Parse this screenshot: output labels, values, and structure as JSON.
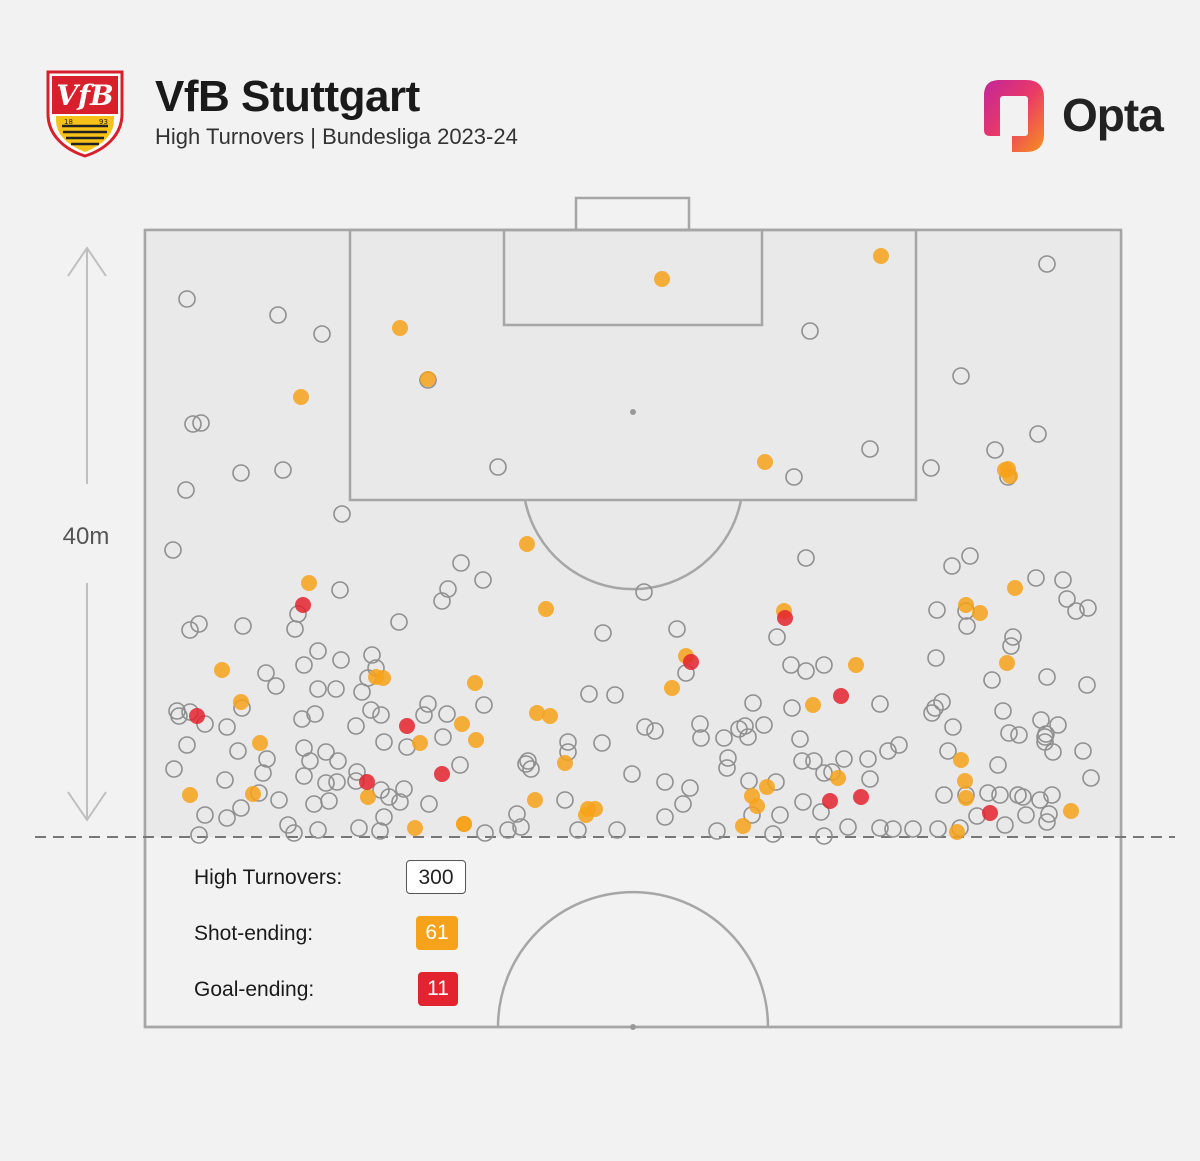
{
  "header": {
    "title": "VfB Stuttgart",
    "subtitle": "High Turnovers | Bundesliga 2023-24",
    "brand": "Opta",
    "crest_text": "VfB",
    "crest_year_left": "18",
    "crest_year_right": "93"
  },
  "distance_label": "40m",
  "stats": {
    "high_turnovers_label": "High Turnovers:",
    "high_turnovers_value": "300",
    "shot_ending_label": "Shot-ending:",
    "shot_ending_value": "61",
    "goal_ending_label": "Goal-ending:",
    "goal_ending_value": "11"
  },
  "colors": {
    "turnover": "#ffffff",
    "shot_ending": "#f7a21b",
    "goal_ending": "#e3232e",
    "pitch_lines": "#a6a6a6",
    "crest_red": "#d7202b",
    "crest_gold": "#f6c21a"
  },
  "chart_data": {
    "type": "scatter",
    "title": "VfB Stuttgart",
    "subtitle": "High Turnovers | Bundesliga 2023-24",
    "pitch_region": "attacking half, within 40m of opponent goal",
    "series": [
      {
        "name": "High Turnovers",
        "color": "#ffffff",
        "points": [
          [
            187,
            299
          ],
          [
            278,
            315
          ],
          [
            322,
            334
          ],
          [
            193,
            424
          ],
          [
            201,
            423
          ],
          [
            186,
            490
          ],
          [
            241,
            473
          ],
          [
            283,
            470
          ],
          [
            342,
            514
          ],
          [
            173,
            550
          ],
          [
            190,
            630
          ],
          [
            199,
            624
          ],
          [
            243,
            626
          ],
          [
            295,
            629
          ],
          [
            298,
            614
          ],
          [
            340,
            590
          ],
          [
            318,
            651
          ],
          [
            304,
            665
          ],
          [
            276,
            686
          ],
          [
            266,
            673
          ],
          [
            177,
            711
          ],
          [
            179,
            716
          ],
          [
            205,
            724
          ],
          [
            227,
            727
          ],
          [
            242,
            708
          ],
          [
            238,
            751
          ],
          [
            187,
            745
          ],
          [
            174,
            769
          ],
          [
            225,
            780
          ],
          [
            263,
            773
          ],
          [
            267,
            759
          ],
          [
            302,
            719
          ],
          [
            315,
            714
          ],
          [
            304,
            748
          ],
          [
            326,
            752
          ],
          [
            338,
            761
          ],
          [
            310,
            761
          ],
          [
            304,
            776
          ],
          [
            326,
            783
          ],
          [
            337,
            782
          ],
          [
            314,
            804
          ],
          [
            329,
            801
          ],
          [
            279,
            800
          ],
          [
            259,
            793
          ],
          [
            241,
            808
          ],
          [
            205,
            815
          ],
          [
            227,
            818
          ],
          [
            199,
            835
          ],
          [
            288,
            825
          ],
          [
            294,
            833
          ],
          [
            318,
            830
          ],
          [
            368,
            678
          ],
          [
            372,
            655
          ],
          [
            376,
            668
          ],
          [
            341,
            660
          ],
          [
            318,
            689
          ],
          [
            336,
            689
          ],
          [
            362,
            692
          ],
          [
            371,
            710
          ],
          [
            381,
            715
          ],
          [
            356,
            726
          ],
          [
            384,
            742
          ],
          [
            357,
            772
          ],
          [
            356,
            781
          ],
          [
            381,
            790
          ],
          [
            389,
            797
          ],
          [
            400,
            802
          ],
          [
            404,
            789
          ],
          [
            384,
            817
          ],
          [
            359,
            828
          ],
          [
            380,
            831
          ],
          [
            407,
            747
          ],
          [
            428,
            704
          ],
          [
            424,
            715
          ],
          [
            447,
            714
          ],
          [
            443,
            737
          ],
          [
            484,
            705
          ],
          [
            460,
            765
          ],
          [
            429,
            804
          ],
          [
            399,
            622
          ],
          [
            442,
            601
          ],
          [
            448,
            589
          ],
          [
            461,
            563
          ],
          [
            483,
            580
          ],
          [
            498,
            467
          ],
          [
            428,
            380
          ],
          [
            190,
            712
          ],
          [
            810,
            331
          ],
          [
            961,
            376
          ],
          [
            870,
            449
          ],
          [
            931,
            468
          ],
          [
            995,
            450
          ],
          [
            1038,
            434
          ],
          [
            1047,
            264
          ],
          [
            806,
            558
          ],
          [
            794,
            477
          ],
          [
            644,
            592
          ],
          [
            603,
            633
          ],
          [
            677,
            629
          ],
          [
            686,
            673
          ],
          [
            589,
            694
          ],
          [
            615,
            695
          ],
          [
            645,
            727
          ],
          [
            655,
            731
          ],
          [
            602,
            743
          ],
          [
            568,
            742
          ],
          [
            568,
            752
          ],
          [
            528,
            761
          ],
          [
            526,
            764
          ],
          [
            531,
            769
          ],
          [
            565,
            800
          ],
          [
            517,
            814
          ],
          [
            521,
            827
          ],
          [
            508,
            830
          ],
          [
            485,
            833
          ],
          [
            578,
            830
          ],
          [
            617,
            830
          ],
          [
            632,
            774
          ],
          [
            665,
            782
          ],
          [
            690,
            788
          ],
          [
            683,
            804
          ],
          [
            665,
            817
          ],
          [
            717,
            831
          ],
          [
            753,
            703
          ],
          [
            745,
            726
          ],
          [
            739,
            729
          ],
          [
            764,
            725
          ],
          [
            748,
            737
          ],
          [
            724,
            738
          ],
          [
            700,
            724
          ],
          [
            701,
            738
          ],
          [
            728,
            758
          ],
          [
            727,
            768
          ],
          [
            749,
            781
          ],
          [
            776,
            782
          ],
          [
            752,
            815
          ],
          [
            780,
            815
          ],
          [
            773,
            834
          ],
          [
            777,
            637
          ],
          [
            791,
            665
          ],
          [
            806,
            671
          ],
          [
            824,
            665
          ],
          [
            792,
            708
          ],
          [
            800,
            739
          ],
          [
            802,
            761
          ],
          [
            814,
            761
          ],
          [
            824,
            773
          ],
          [
            832,
            772
          ],
          [
            844,
            759
          ],
          [
            868,
            759
          ],
          [
            870,
            779
          ],
          [
            880,
            704
          ],
          [
            888,
            751
          ],
          [
            899,
            745
          ],
          [
            803,
            802
          ],
          [
            821,
            812
          ],
          [
            824,
            836
          ],
          [
            848,
            827
          ],
          [
            880,
            828
          ],
          [
            893,
            829
          ],
          [
            913,
            829
          ],
          [
            938,
            829
          ],
          [
            935,
            708
          ],
          [
            932,
            713
          ],
          [
            936,
            658
          ],
          [
            992,
            680
          ],
          [
            1003,
            711
          ],
          [
            1009,
            733
          ],
          [
            998,
            765
          ],
          [
            1019,
            735
          ],
          [
            1045,
            737
          ],
          [
            1046,
            734
          ],
          [
            1045,
            742
          ],
          [
            1041,
            720
          ],
          [
            1058,
            725
          ],
          [
            1053,
            752
          ],
          [
            1083,
            751
          ],
          [
            1091,
            778
          ],
          [
            1047,
            677
          ],
          [
            1087,
            685
          ],
          [
            1063,
            580
          ],
          [
            1067,
            599
          ],
          [
            1076,
            611
          ],
          [
            1088,
            608
          ],
          [
            1036,
            578
          ],
          [
            1011,
            646
          ],
          [
            1013,
            637
          ],
          [
            967,
            626
          ],
          [
            966,
            611
          ],
          [
            937,
            610
          ],
          [
            952,
            566
          ],
          [
            970,
            556
          ],
          [
            942,
            702
          ],
          [
            953,
            727
          ],
          [
            948,
            751
          ],
          [
            944,
            795
          ],
          [
            966,
            795
          ],
          [
            1000,
            795
          ],
          [
            988,
            793
          ],
          [
            1018,
            795
          ],
          [
            1023,
            797
          ],
          [
            1026,
            815
          ],
          [
            1040,
            800
          ],
          [
            1052,
            795
          ],
          [
            1049,
            814
          ],
          [
            1047,
            822
          ],
          [
            1005,
            825
          ],
          [
            977,
            816
          ],
          [
            960,
            828
          ],
          [
            1008,
            477
          ]
        ]
      },
      {
        "name": "Shot-ending",
        "color": "#f7a21b",
        "points": [
          [
            662,
            279
          ],
          [
            881,
            256
          ],
          [
            400,
            328
          ],
          [
            428,
            379
          ],
          [
            301,
            397
          ],
          [
            765,
            462
          ],
          [
            1008,
            469
          ],
          [
            1010,
            476
          ],
          [
            527,
            544
          ],
          [
            546,
            609
          ],
          [
            309,
            583
          ],
          [
            1015,
            588
          ],
          [
            966,
            605
          ],
          [
            980,
            613
          ],
          [
            784,
            611
          ],
          [
            1007,
            663
          ],
          [
            856,
            665
          ],
          [
            686,
            656
          ],
          [
            672,
            688
          ],
          [
            222,
            670
          ],
          [
            241,
            702
          ],
          [
            376,
            677
          ],
          [
            383,
            678
          ],
          [
            475,
            683
          ],
          [
            462,
            724
          ],
          [
            476,
            740
          ],
          [
            537,
            713
          ],
          [
            550,
            716
          ],
          [
            420,
            743
          ],
          [
            260,
            743
          ],
          [
            565,
            763
          ],
          [
            813,
            705
          ],
          [
            961,
            760
          ],
          [
            965,
            781
          ],
          [
            838,
            778
          ],
          [
            767,
            787
          ],
          [
            752,
            796
          ],
          [
            757,
            806
          ],
          [
            595,
            809
          ],
          [
            588,
            809
          ],
          [
            586,
            815
          ],
          [
            535,
            800
          ],
          [
            368,
            797
          ],
          [
            415,
            828
          ],
          [
            464,
            824
          ],
          [
            464,
            824
          ],
          [
            190,
            795
          ],
          [
            253,
            794
          ],
          [
            743,
            826
          ],
          [
            966,
            798
          ],
          [
            957,
            832
          ],
          [
            1071,
            811
          ],
          [
            1005,
            470
          ]
        ]
      },
      {
        "name": "Goal-ending",
        "color": "#e3232e",
        "points": [
          [
            303,
            605
          ],
          [
            785,
            618
          ],
          [
            691,
            662
          ],
          [
            841,
            696
          ],
          [
            197,
            716
          ],
          [
            407,
            726
          ],
          [
            442,
            774
          ],
          [
            367,
            782
          ],
          [
            830,
            801
          ],
          [
            861,
            797
          ],
          [
            990,
            813
          ]
        ]
      }
    ],
    "stats": {
      "High Turnovers": 300,
      "Shot-ending": 61,
      "Goal-ending": 11
    }
  }
}
